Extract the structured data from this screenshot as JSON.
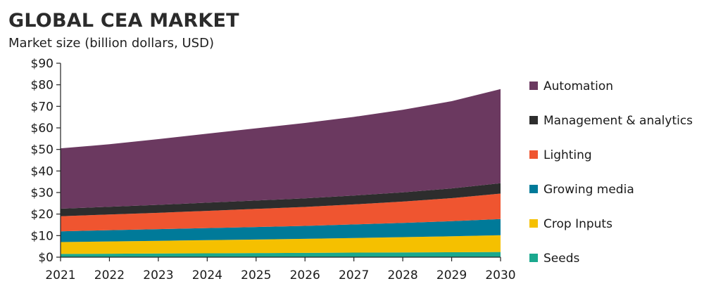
{
  "chart_data": {
    "type": "area",
    "stacked": true,
    "title": "GLOBAL CEA MARKET",
    "subtitle": "Market size (billion dollars, USD)",
    "xlabel": "",
    "ylabel": "",
    "x": [
      2021,
      2022,
      2023,
      2024,
      2025,
      2026,
      2027,
      2028,
      2029,
      2030
    ],
    "ylim": [
      0,
      90
    ],
    "yticks": [
      0,
      10,
      20,
      30,
      40,
      50,
      60,
      70,
      80,
      90
    ],
    "ytick_labels": [
      "$0",
      "$10",
      "$20",
      "$30",
      "$40",
      "$50",
      "$60",
      "$70",
      "$80",
      "$90"
    ],
    "grid": false,
    "legend_position": "right",
    "series": [
      {
        "name": "Seeds",
        "color": "#1aa88e",
        "values": [
          1.5,
          1.6,
          1.7,
          1.8,
          1.9,
          2.0,
          2.1,
          2.2,
          2.3,
          2.4
        ]
      },
      {
        "name": "Crop Inputs",
        "color": "#f5c000",
        "values": [
          5.5,
          5.7,
          5.9,
          6.1,
          6.3,
          6.5,
          6.8,
          7.1,
          7.4,
          7.8
        ]
      },
      {
        "name": "Growing media",
        "color": "#007a99",
        "values": [
          5.0,
          5.2,
          5.4,
          5.6,
          5.8,
          6.0,
          6.3,
          6.6,
          7.0,
          7.5
        ]
      },
      {
        "name": "Lighting",
        "color": "#ef5530",
        "values": [
          7.0,
          7.3,
          7.6,
          8.0,
          8.4,
          8.8,
          9.3,
          9.9,
          10.7,
          11.8
        ]
      },
      {
        "name": "Management & analytics",
        "color": "#2d2d2d",
        "values": [
          3.5,
          3.6,
          3.7,
          3.8,
          3.9,
          4.0,
          4.1,
          4.3,
          4.5,
          4.8
        ]
      },
      {
        "name": "Automation",
        "color": "#6b3960",
        "values": [
          28.0,
          29.0,
          30.5,
          32.0,
          33.5,
          35.0,
          36.5,
          38.3,
          40.5,
          43.7
        ]
      }
    ],
    "legend_order": [
      "Automation",
      "Management & analytics",
      "Lighting",
      "Growing media",
      "Crop Inputs",
      "Seeds"
    ]
  }
}
